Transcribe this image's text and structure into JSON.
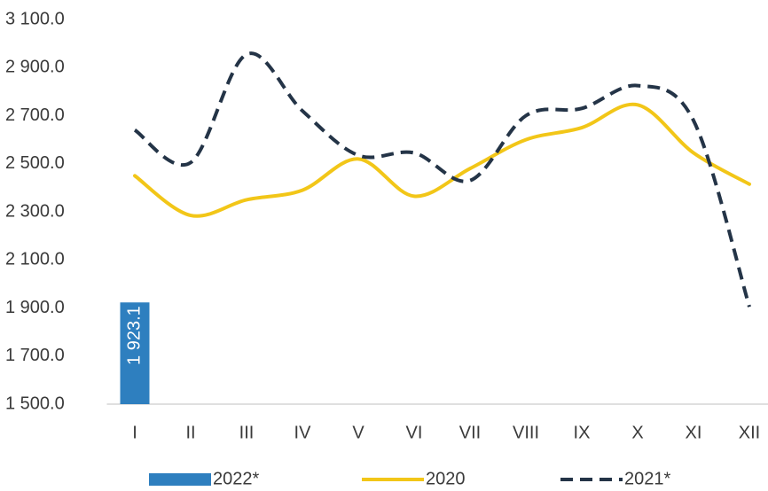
{
  "chart_data": {
    "type": "line",
    "categories": [
      "I",
      "II",
      "III",
      "IV",
      "V",
      "VI",
      "VII",
      "VIII",
      "IX",
      "X",
      "XI",
      "XII"
    ],
    "series": [
      {
        "name": "2022*",
        "type": "bar",
        "color": "#2e7fbf",
        "values": [
          1923.1,
          null,
          null,
          null,
          null,
          null,
          null,
          null,
          null,
          null,
          null,
          null
        ],
        "value_labels": [
          "1 923.1",
          null,
          null,
          null,
          null,
          null,
          null,
          null,
          null,
          null,
          null,
          null
        ]
      },
      {
        "name": "2020",
        "type": "line",
        "color": "#f2c618",
        "dashed": false,
        "values": [
          2450,
          2285,
          2350,
          2390,
          2520,
          2365,
          2480,
          2600,
          2650,
          2745,
          2545,
          2415
        ]
      },
      {
        "name": "2021*",
        "type": "line",
        "color": "#243447",
        "dashed": true,
        "values": [
          2640,
          2505,
          2955,
          2720,
          2535,
          2545,
          2430,
          2700,
          2730,
          2825,
          2680,
          1905
        ]
      }
    ],
    "ylim": [
      1500,
      3100
    ],
    "yticks": [
      {
        "value": 1500,
        "label": "1 500.0"
      },
      {
        "value": 1700,
        "label": "1 700.0"
      },
      {
        "value": 1900,
        "label": "1 900.0"
      },
      {
        "value": 2100,
        "label": "2 100.0"
      },
      {
        "value": 2300,
        "label": "2 300.0"
      },
      {
        "value": 2500,
        "label": "2 500.0"
      },
      {
        "value": 2700,
        "label": "2 700.0"
      },
      {
        "value": 2900,
        "label": "2 900.0"
      },
      {
        "value": 3100,
        "label": "3 100.0"
      }
    ],
    "grid": false,
    "legend": "bottom"
  }
}
